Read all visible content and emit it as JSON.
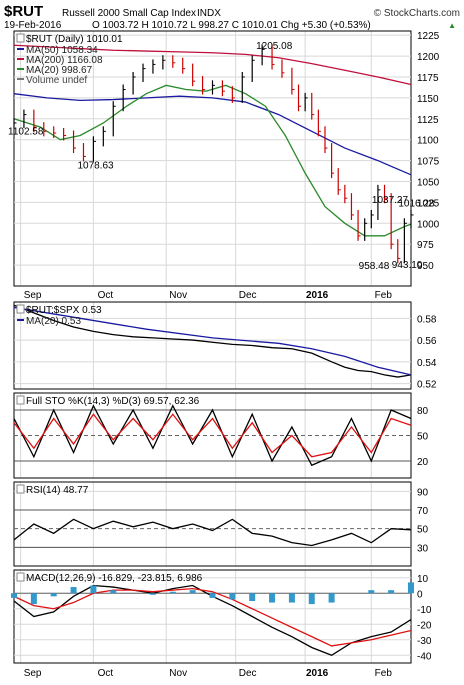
{
  "header": {
    "symbol": "$RUT",
    "name": "Russell 2000 Small Cap Index",
    "exchange": "INDX",
    "watermark": "© StockCharts.com",
    "date": "19-Feb-2016",
    "ohlc": "O 1003.72  H 1010.72  L 998.27  C 1010.01  Chg +5.30 (+0.53%)",
    "chg_arrow": "▲"
  },
  "colors": {
    "price": "#000000",
    "ma50": "#1a1aa0",
    "ma200": "#c0103c",
    "ma20": "#2a8a2a",
    "ratio": "#000000",
    "ratio_ma": "#1a1aa0",
    "sto_k": "#000000",
    "sto_d": "#e01010",
    "rsi": "#000000",
    "macd": "#000000",
    "signal": "#e01010",
    "hist": "#3399cc",
    "rsi_fill": "#7a5a3a",
    "grid": "#d8d8d8"
  },
  "chart_data": [
    {
      "type": "line",
      "title": "$RUT (Daily) 1010.01",
      "series": [
        {
          "name": "MA(50) 1058.34",
          "key": "ma50",
          "style": "line",
          "x": [
            0,
            10,
            20,
            30,
            40,
            50,
            60,
            70,
            80,
            90,
            100,
            110,
            120
          ],
          "values": [
            1155,
            1150,
            1147,
            1148,
            1150,
            1152,
            1150,
            1145,
            1130,
            1110,
            1090,
            1075,
            1058
          ]
        },
        {
          "name": "MA(200) 1166.08",
          "key": "ma200",
          "style": "line",
          "x": [
            0,
            10,
            20,
            30,
            40,
            50,
            60,
            70,
            80,
            90,
            100,
            110,
            120
          ],
          "values": [
            1213,
            1211,
            1209,
            1207,
            1206,
            1205,
            1204,
            1202,
            1198,
            1191,
            1183,
            1175,
            1166
          ]
        },
        {
          "name": "MA(20) 998.67",
          "key": "ma20",
          "style": "line",
          "x": [
            0,
            8,
            14,
            20,
            27,
            34,
            40,
            46,
            52,
            58,
            64,
            70,
            76,
            82,
            88,
            94,
            100,
            106,
            112,
            118,
            120
          ],
          "values": [
            1125,
            1115,
            1100,
            1105,
            1120,
            1140,
            1155,
            1165,
            1160,
            1158,
            1165,
            1155,
            1140,
            1105,
            1060,
            1020,
            1000,
            985,
            985,
            996,
            999
          ]
        },
        {
          "name": "Price",
          "key": "price",
          "style": "bar",
          "x": [
            0,
            3,
            6,
            9,
            12,
            15,
            18,
            21,
            24,
            27,
            30,
            33,
            36,
            39,
            42,
            45,
            48,
            51,
            54,
            57,
            60,
            63,
            66,
            69,
            72,
            75,
            78,
            81,
            84,
            86,
            88,
            90,
            92,
            94,
            96,
            98,
            100,
            102,
            104,
            106,
            108,
            110,
            112,
            114,
            116,
            118,
            120
          ],
          "values": [
            1120,
            1130,
            1115,
            1110,
            1108,
            1105,
            1090,
            1080,
            1098,
            1110,
            1140,
            1160,
            1175,
            1185,
            1190,
            1195,
            1192,
            1185,
            1170,
            1160,
            1165,
            1158,
            1150,
            1175,
            1195,
            1208,
            1190,
            1180,
            1160,
            1140,
            1150,
            1130,
            1110,
            1090,
            1060,
            1040,
            1030,
            1010,
            985,
            1000,
            1010,
            1040,
            1030,
            975,
            958,
            1000,
            1010
          ]
        },
        {
          "name": "Volume undef",
          "key": "volume",
          "style": "none",
          "x": [],
          "values": []
        }
      ],
      "ylim": [
        925,
        1230
      ],
      "yticks": [
        950,
        975,
        1000,
        1025,
        1050,
        1075,
        1100,
        1125,
        1150,
        1175,
        1200,
        1225
      ],
      "annotations": [
        {
          "text": "1102.58",
          "x": 0,
          "y": 1102.58
        },
        {
          "text": "1078.63",
          "x": 21,
          "y": 1078.63
        },
        {
          "text": "1205.08",
          "x": 75,
          "y": 1205.08
        },
        {
          "text": "1037.27",
          "x": 110,
          "y": 1037.27
        },
        {
          "text": "1016.28",
          "x": 118,
          "y": 1016.28
        },
        {
          "text": "958.48",
          "x": 106,
          "y": 958.48
        },
        {
          "text": "943.10",
          "x": 116,
          "y": 943.1
        }
      ]
    },
    {
      "type": "line",
      "title": "$RUT:$SPX 0.53",
      "series": [
        {
          "name": "Ratio",
          "key": "ratio",
          "x": [
            0,
            6,
            12,
            18,
            24,
            30,
            36,
            42,
            48,
            54,
            60,
            66,
            72,
            78,
            84,
            90,
            96,
            100,
            104,
            108,
            112,
            116,
            120
          ],
          "values": [
            0.592,
            0.585,
            0.578,
            0.572,
            0.568,
            0.565,
            0.563,
            0.562,
            0.561,
            0.56,
            0.558,
            0.556,
            0.555,
            0.553,
            0.552,
            0.548,
            0.54,
            0.535,
            0.532,
            0.531,
            0.528,
            0.526,
            0.528
          ]
        },
        {
          "name": "MA(20) 0.53",
          "key": "ratio_ma",
          "x": [
            0,
            20,
            40,
            60,
            80,
            90,
            100,
            110,
            120
          ],
          "values": [
            0.59,
            0.58,
            0.57,
            0.562,
            0.557,
            0.552,
            0.545,
            0.535,
            0.528
          ]
        }
      ],
      "ylim": [
        0.515,
        0.595
      ],
      "yticks": [
        0.52,
        0.54,
        0.56,
        0.58
      ]
    },
    {
      "type": "line",
      "title": "Full STO %K(14,3) %D(3) 69.57, 62.36",
      "series": [
        {
          "name": "%K",
          "key": "sto_k",
          "x": [
            0,
            6,
            12,
            18,
            24,
            30,
            36,
            42,
            48,
            54,
            60,
            66,
            72,
            78,
            84,
            90,
            96,
            102,
            108,
            114,
            120
          ],
          "values": [
            70,
            25,
            80,
            30,
            85,
            40,
            80,
            35,
            85,
            40,
            80,
            25,
            75,
            20,
            60,
            15,
            25,
            70,
            20,
            80,
            70
          ]
        },
        {
          "name": "%D",
          "key": "sto_d",
          "x": [
            0,
            6,
            12,
            18,
            24,
            30,
            36,
            42,
            48,
            54,
            60,
            66,
            72,
            78,
            84,
            90,
            96,
            102,
            108,
            114,
            120
          ],
          "values": [
            65,
            35,
            70,
            40,
            75,
            45,
            70,
            45,
            75,
            45,
            70,
            35,
            65,
            30,
            50,
            25,
            30,
            60,
            30,
            70,
            62
          ]
        }
      ],
      "ylim": [
        0,
        100
      ],
      "yticks": [
        20,
        50,
        80
      ]
    },
    {
      "type": "area",
      "title": "RSI(14) 48.77",
      "series": [
        {
          "name": "RSI",
          "key": "rsi",
          "x": [
            0,
            6,
            12,
            18,
            24,
            30,
            36,
            42,
            48,
            54,
            60,
            66,
            72,
            78,
            84,
            90,
            96,
            102,
            108,
            114,
            120
          ],
          "values": [
            38,
            55,
            45,
            60,
            50,
            58,
            52,
            57,
            50,
            55,
            48,
            60,
            45,
            42,
            35,
            32,
            38,
            45,
            35,
            50,
            48.77
          ]
        }
      ],
      "ylim": [
        10,
        100
      ],
      "yticks": [
        30,
        50,
        70,
        90
      ]
    },
    {
      "type": "bar",
      "title": "MACD(12,26,9) -16.829, -23.815, 6.986",
      "series": [
        {
          "name": "MACD",
          "key": "macd",
          "x": [
            0,
            6,
            12,
            18,
            24,
            30,
            36,
            42,
            48,
            54,
            60,
            66,
            72,
            78,
            84,
            90,
            96,
            102,
            108,
            114,
            120
          ],
          "values": [
            -5,
            -15,
            -12,
            -2,
            5,
            4,
            2,
            0,
            3,
            5,
            -2,
            -8,
            -15,
            -22,
            -28,
            -35,
            -40,
            -32,
            -28,
            -25,
            -17
          ]
        },
        {
          "name": "Signal",
          "key": "signal",
          "x": [
            0,
            6,
            12,
            18,
            24,
            30,
            36,
            42,
            48,
            54,
            60,
            66,
            72,
            78,
            84,
            90,
            96,
            102,
            108,
            114,
            120
          ],
          "values": [
            -2,
            -8,
            -10,
            -6,
            0,
            2,
            2,
            1,
            2,
            3,
            1,
            -4,
            -10,
            -16,
            -22,
            -28,
            -34,
            -32,
            -30,
            -27,
            -24
          ]
        },
        {
          "name": "Histogram",
          "key": "hist",
          "x": [
            0,
            6,
            12,
            18,
            24,
            30,
            36,
            42,
            48,
            54,
            60,
            66,
            72,
            78,
            84,
            90,
            96,
            102,
            108,
            114,
            120
          ],
          "values": [
            -3,
            -7,
            -2,
            4,
            5,
            2,
            0,
            -1,
            1,
            2,
            -3,
            -4,
            -5,
            -6,
            -6,
            -7,
            -6,
            0,
            2,
            2,
            7
          ]
        }
      ],
      "ylim": [
        -45,
        15
      ],
      "yticks": [
        -40,
        -30,
        -20,
        -10,
        0,
        10
      ]
    }
  ],
  "x_axis": {
    "labels": [
      {
        "text": "Sep",
        "x": 2,
        "bold": false
      },
      {
        "text": "Oct",
        "x": 24,
        "bold": false
      },
      {
        "text": "Nov",
        "x": 46,
        "bold": false
      },
      {
        "text": "Dec",
        "x": 67,
        "bold": false
      },
      {
        "text": "2016",
        "x": 88,
        "bold": true
      },
      {
        "text": "Feb",
        "x": 108,
        "bold": false
      }
    ],
    "xmax": 120
  }
}
